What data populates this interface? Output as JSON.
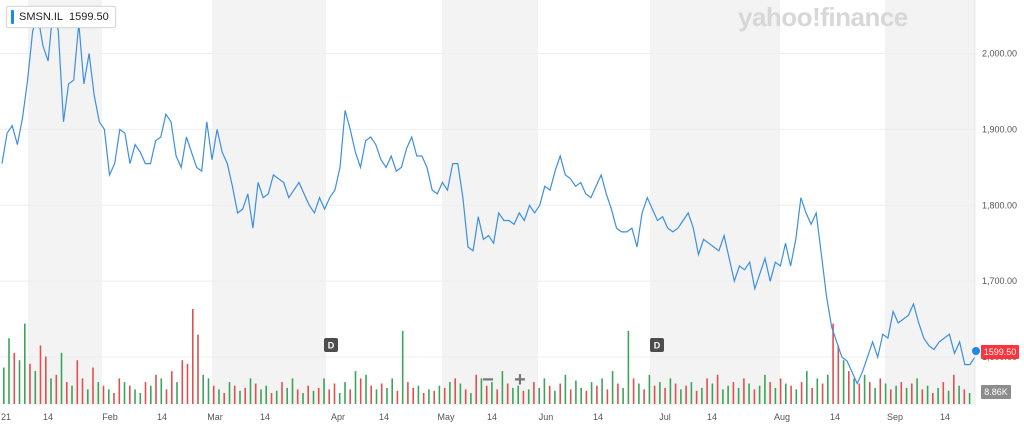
{
  "ticker": {
    "symbol": "SMSN.IL",
    "price": "1599.50"
  },
  "brand": "yahoo!finance",
  "zoom": {
    "minus": "−",
    "plus": "+"
  },
  "tags": {
    "price": "1599.50",
    "volume": "8.86K"
  },
  "events": [
    "D",
    "D"
  ],
  "colors": {
    "line": "#3d8fe0",
    "up": "#3aa55a",
    "down": "#e0504f",
    "band": "#f3f3f3",
    "price_tag": "#ff333a"
  },
  "chart_data": {
    "type": "line",
    "title": "",
    "xlabel": "",
    "ylabel": "",
    "x_tick_labels": [
      "21",
      "14",
      "Feb",
      "14",
      "Mar",
      "14",
      "Apr",
      "14",
      "May",
      "14",
      "Jun",
      "14",
      "Jul",
      "14",
      "Aug",
      "14",
      "Sep",
      "14"
    ],
    "y_ticks": [
      "2,000.00",
      "1,900.00",
      "1,800.00",
      "1,700.00",
      "1,600.00"
    ],
    "ylim": [
      1550,
      2060
    ],
    "grid": false,
    "legend": "none",
    "price_series": [
      1855,
      1895,
      1905,
      1880,
      1915,
      1965,
      2030,
      2050,
      2010,
      1990,
      2060,
      2030,
      1910,
      1960,
      1965,
      2040,
      1960,
      2000,
      1945,
      1910,
      1900,
      1840,
      1855,
      1900,
      1895,
      1855,
      1880,
      1870,
      1855,
      1855,
      1885,
      1890,
      1920,
      1910,
      1865,
      1850,
      1890,
      1870,
      1850,
      1845,
      1910,
      1860,
      1900,
      1870,
      1855,
      1825,
      1790,
      1795,
      1815,
      1770,
      1830,
      1810,
      1815,
      1840,
      1835,
      1830,
      1810,
      1820,
      1830,
      1815,
      1800,
      1790,
      1810,
      1795,
      1810,
      1820,
      1850,
      1925,
      1900,
      1870,
      1850,
      1885,
      1890,
      1880,
      1860,
      1850,
      1865,
      1845,
      1850,
      1875,
      1890,
      1865,
      1865,
      1850,
      1820,
      1815,
      1830,
      1820,
      1855,
      1855,
      1810,
      1745,
      1740,
      1785,
      1755,
      1760,
      1750,
      1790,
      1780,
      1780,
      1775,
      1790,
      1780,
      1800,
      1790,
      1800,
      1825,
      1820,
      1845,
      1865,
      1840,
      1835,
      1825,
      1830,
      1815,
      1810,
      1825,
      1840,
      1815,
      1795,
      1770,
      1765,
      1765,
      1770,
      1745,
      1790,
      1810,
      1795,
      1780,
      1785,
      1770,
      1765,
      1770,
      1780,
      1790,
      1770,
      1735,
      1755,
      1750,
      1745,
      1740,
      1760,
      1730,
      1700,
      1720,
      1715,
      1725,
      1690,
      1710,
      1730,
      1700,
      1725,
      1720,
      1750,
      1720,
      1755,
      1810,
      1790,
      1775,
      1790,
      1735,
      1680,
      1640,
      1620,
      1600,
      1595,
      1580,
      1565,
      1580,
      1600,
      1620,
      1600,
      1630,
      1625,
      1660,
      1645,
      1650,
      1655,
      1670,
      1645,
      1625,
      1615,
      1610,
      1620,
      1625,
      1630,
      1605,
      1620,
      1590,
      1590,
      1600
    ],
    "volume_series": [
      {
        "v": 50,
        "up": true
      },
      {
        "v": 90,
        "up": true
      },
      {
        "v": 70,
        "up": false
      },
      {
        "v": 60,
        "up": true
      },
      {
        "v": 110,
        "up": true
      },
      {
        "v": 55,
        "up": false
      },
      {
        "v": 45,
        "up": true
      },
      {
        "v": 80,
        "up": false
      },
      {
        "v": 65,
        "up": false
      },
      {
        "v": 35,
        "up": true
      },
      {
        "v": 40,
        "up": false
      },
      {
        "v": 70,
        "up": true
      },
      {
        "v": 30,
        "up": false
      },
      {
        "v": 25,
        "up": true
      },
      {
        "v": 60,
        "up": false
      },
      {
        "v": 35,
        "up": false
      },
      {
        "v": 20,
        "up": true
      },
      {
        "v": 50,
        "up": false
      },
      {
        "v": 30,
        "up": true
      },
      {
        "v": 25,
        "up": false
      },
      {
        "v": 20,
        "up": true
      },
      {
        "v": 15,
        "up": false
      },
      {
        "v": 35,
        "up": false
      },
      {
        "v": 30,
        "up": true
      },
      {
        "v": 25,
        "up": false
      },
      {
        "v": 20,
        "up": true
      },
      {
        "v": 15,
        "up": true
      },
      {
        "v": 30,
        "up": false
      },
      {
        "v": 25,
        "up": true
      },
      {
        "v": 40,
        "up": false
      },
      {
        "v": 35,
        "up": true
      },
      {
        "v": 20,
        "up": false
      },
      {
        "v": 45,
        "up": false
      },
      {
        "v": 30,
        "up": true
      },
      {
        "v": 60,
        "up": false
      },
      {
        "v": 55,
        "up": false
      },
      {
        "v": 130,
        "up": false
      },
      {
        "v": 95,
        "up": false
      },
      {
        "v": 40,
        "up": true
      },
      {
        "v": 35,
        "up": true
      },
      {
        "v": 25,
        "up": false
      },
      {
        "v": 20,
        "up": true
      },
      {
        "v": 15,
        "up": false
      },
      {
        "v": 30,
        "up": true
      },
      {
        "v": 25,
        "up": false
      },
      {
        "v": 18,
        "up": true
      },
      {
        "v": 22,
        "up": false
      },
      {
        "v": 35,
        "up": true
      },
      {
        "v": 28,
        "up": false
      },
      {
        "v": 20,
        "up": true
      },
      {
        "v": 25,
        "up": true
      },
      {
        "v": 15,
        "up": false
      },
      {
        "v": 18,
        "up": true
      },
      {
        "v": 30,
        "up": false
      },
      {
        "v": 22,
        "up": true
      },
      {
        "v": 35,
        "up": true
      },
      {
        "v": 20,
        "up": false
      },
      {
        "v": 15,
        "up": true
      },
      {
        "v": 25,
        "up": false
      },
      {
        "v": 18,
        "up": true
      },
      {
        "v": 22,
        "up": false
      },
      {
        "v": 35,
        "up": true
      },
      {
        "v": 20,
        "up": false
      },
      {
        "v": 28,
        "up": false
      },
      {
        "v": 15,
        "up": true
      },
      {
        "v": 30,
        "up": true
      },
      {
        "v": 20,
        "up": false
      },
      {
        "v": 45,
        "up": true
      },
      {
        "v": 35,
        "up": false
      },
      {
        "v": 40,
        "up": true
      },
      {
        "v": 25,
        "up": false
      },
      {
        "v": 20,
        "up": true
      },
      {
        "v": 28,
        "up": false
      },
      {
        "v": 22,
        "up": true
      },
      {
        "v": 35,
        "up": true
      },
      {
        "v": 18,
        "up": false
      },
      {
        "v": 100,
        "up": true
      },
      {
        "v": 30,
        "up": false
      },
      {
        "v": 22,
        "up": false
      },
      {
        "v": 25,
        "up": true
      },
      {
        "v": 15,
        "up": false
      },
      {
        "v": 20,
        "up": true
      },
      {
        "v": 18,
        "up": false
      },
      {
        "v": 25,
        "up": true
      },
      {
        "v": 22,
        "up": false
      },
      {
        "v": 30,
        "up": true
      },
      {
        "v": 35,
        "up": false
      },
      {
        "v": 28,
        "up": true
      },
      {
        "v": 20,
        "up": false
      },
      {
        "v": 15,
        "up": true
      },
      {
        "v": 40,
        "up": false
      },
      {
        "v": 35,
        "up": true
      },
      {
        "v": 25,
        "up": false
      },
      {
        "v": 30,
        "up": true
      },
      {
        "v": 20,
        "up": false
      },
      {
        "v": 45,
        "up": true
      },
      {
        "v": 28,
        "up": false
      },
      {
        "v": 22,
        "up": true
      },
      {
        "v": 25,
        "up": true
      },
      {
        "v": 18,
        "up": false
      },
      {
        "v": 20,
        "up": true
      },
      {
        "v": 30,
        "up": false
      },
      {
        "v": 22,
        "up": true
      },
      {
        "v": 35,
        "up": true
      },
      {
        "v": 25,
        "up": false
      },
      {
        "v": 18,
        "up": true
      },
      {
        "v": 28,
        "up": false
      },
      {
        "v": 40,
        "up": true
      },
      {
        "v": 20,
        "up": false
      },
      {
        "v": 32,
        "up": true
      },
      {
        "v": 22,
        "up": true
      },
      {
        "v": 18,
        "up": false
      },
      {
        "v": 30,
        "up": true
      },
      {
        "v": 25,
        "up": false
      },
      {
        "v": 35,
        "up": true
      },
      {
        "v": 20,
        "up": false
      },
      {
        "v": 45,
        "up": true
      },
      {
        "v": 28,
        "up": false
      },
      {
        "v": 22,
        "up": true
      },
      {
        "v": 100,
        "up": true
      },
      {
        "v": 35,
        "up": false
      },
      {
        "v": 28,
        "up": true
      },
      {
        "v": 20,
        "up": false
      },
      {
        "v": 40,
        "up": true
      },
      {
        "v": 25,
        "up": false
      },
      {
        "v": 30,
        "up": true
      },
      {
        "v": 22,
        "up": false
      },
      {
        "v": 35,
        "up": true
      },
      {
        "v": 28,
        "up": false
      },
      {
        "v": 20,
        "up": true
      },
      {
        "v": 25,
        "up": false
      },
      {
        "v": 30,
        "up": true
      },
      {
        "v": 18,
        "up": false
      },
      {
        "v": 22,
        "up": true
      },
      {
        "v": 35,
        "up": false
      },
      {
        "v": 28,
        "up": true
      },
      {
        "v": 40,
        "up": false
      },
      {
        "v": 20,
        "up": true
      },
      {
        "v": 25,
        "up": true
      },
      {
        "v": 30,
        "up": false
      },
      {
        "v": 22,
        "up": true
      },
      {
        "v": 35,
        "up": false
      },
      {
        "v": 28,
        "up": true
      },
      {
        "v": 20,
        "up": false
      },
      {
        "v": 25,
        "up": true
      },
      {
        "v": 40,
        "up": true
      },
      {
        "v": 30,
        "up": false
      },
      {
        "v": 22,
        "up": true
      },
      {
        "v": 35,
        "up": false
      },
      {
        "v": 28,
        "up": true
      },
      {
        "v": 25,
        "up": false
      },
      {
        "v": 20,
        "up": true
      },
      {
        "v": 30,
        "up": false
      },
      {
        "v": 45,
        "up": true
      },
      {
        "v": 22,
        "up": false
      },
      {
        "v": 35,
        "up": true
      },
      {
        "v": 28,
        "up": false
      },
      {
        "v": 40,
        "up": true
      },
      {
        "v": 110,
        "up": false
      },
      {
        "v": 80,
        "up": false
      },
      {
        "v": 60,
        "up": true
      },
      {
        "v": 45,
        "up": false
      },
      {
        "v": 35,
        "up": true
      },
      {
        "v": 28,
        "up": false
      },
      {
        "v": 40,
        "up": true
      },
      {
        "v": 30,
        "up": false
      },
      {
        "v": 22,
        "up": true
      },
      {
        "v": 35,
        "up": false
      },
      {
        "v": 28,
        "up": true
      },
      {
        "v": 20,
        "up": false
      },
      {
        "v": 25,
        "up": true
      },
      {
        "v": 30,
        "up": false
      },
      {
        "v": 22,
        "up": true
      },
      {
        "v": 28,
        "up": false
      },
      {
        "v": 35,
        "up": true
      },
      {
        "v": 20,
        "up": false
      },
      {
        "v": 25,
        "up": true
      },
      {
        "v": 15,
        "up": false
      },
      {
        "v": 22,
        "up": true
      },
      {
        "v": 30,
        "up": false
      },
      {
        "v": 18,
        "up": true
      },
      {
        "v": 40,
        "up": false
      },
      {
        "v": 25,
        "up": true
      },
      {
        "v": 20,
        "up": false
      },
      {
        "v": 15,
        "up": true
      }
    ]
  }
}
